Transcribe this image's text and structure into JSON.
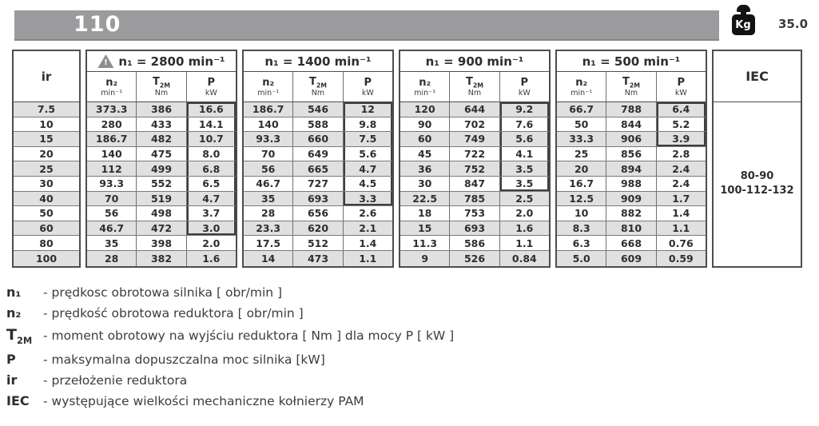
{
  "header": {
    "model": "110",
    "kg_label": "Kg",
    "weight": "35.0"
  },
  "table": {
    "ir_label": "ir",
    "iec_label": "IEC",
    "iec_values": [
      "80-90",
      "100-112-132"
    ],
    "warning_icon_char": "!",
    "sub_headers": {
      "n2_sym": "n₂",
      "n2_unit": "min⁻¹",
      "t2m_main": "T",
      "t2m_sub": "2M",
      "t2m_unit": "Nm",
      "p_sym": "P",
      "p_unit": "kW"
    },
    "ir_values": [
      "7.5",
      "10",
      "15",
      "20",
      "25",
      "30",
      "40",
      "50",
      "60",
      "80",
      "100"
    ],
    "groups": [
      {
        "title": "n₁ = 2800 min⁻¹",
        "warning": true,
        "p_box_rows": 9,
        "n2": [
          "373.3",
          "280",
          "186.7",
          "140",
          "112",
          "93.3",
          "70",
          "56",
          "46.7",
          "35",
          "28"
        ],
        "t2m": [
          "386",
          "433",
          "482",
          "475",
          "499",
          "552",
          "519",
          "498",
          "472",
          "398",
          "382"
        ],
        "p": [
          "16.6",
          "14.1",
          "10.7",
          "8.0",
          "6.8",
          "6.5",
          "4.7",
          "3.7",
          "3.0",
          "2.0",
          "1.6"
        ]
      },
      {
        "title": "n₁ = 1400 min⁻¹",
        "warning": false,
        "p_box_rows": 7,
        "n2": [
          "186.7",
          "140",
          "93.3",
          "70",
          "56",
          "46.7",
          "35",
          "28",
          "23.3",
          "17.5",
          "14"
        ],
        "t2m": [
          "546",
          "588",
          "660",
          "649",
          "665",
          "727",
          "693",
          "656",
          "620",
          "512",
          "473"
        ],
        "p": [
          "12",
          "9.8",
          "7.5",
          "5.6",
          "4.7",
          "4.5",
          "3.3",
          "2.6",
          "2.1",
          "1.4",
          "1.1"
        ]
      },
      {
        "title": "n₁ = 900 min⁻¹",
        "warning": false,
        "p_box_rows": 6,
        "n2": [
          "120",
          "90",
          "60",
          "45",
          "36",
          "30",
          "22.5",
          "18",
          "15",
          "11.3",
          "9"
        ],
        "t2m": [
          "644",
          "702",
          "749",
          "722",
          "752",
          "847",
          "785",
          "753",
          "693",
          "586",
          "526"
        ],
        "p": [
          "9.2",
          "7.6",
          "5.6",
          "4.1",
          "3.5",
          "3.5",
          "2.5",
          "2.0",
          "1.6",
          "1.1",
          "0.84"
        ]
      },
      {
        "title": "n₁ = 500 min⁻¹",
        "warning": false,
        "p_box_rows": 3,
        "n2": [
          "66.7",
          "50",
          "33.3",
          "25",
          "20",
          "16.7",
          "12.5",
          "10",
          "8.3",
          "6.3",
          "5.0"
        ],
        "t2m": [
          "788",
          "844",
          "906",
          "856",
          "894",
          "988",
          "909",
          "882",
          "810",
          "668",
          "609"
        ],
        "p": [
          "6.4",
          "5.2",
          "3.9",
          "2.8",
          "2.4",
          "2.4",
          "1.7",
          "1.4",
          "1.1",
          "0.76",
          "0.59"
        ]
      }
    ]
  },
  "legend": [
    {
      "id": "n1",
      "sym": "n₁",
      "sub": "",
      "text": "- prędkosc obrotowa silnika [ obr/min ]"
    },
    {
      "id": "n2",
      "sym": "n₂",
      "sub": "",
      "text": "- prędkość obrotowa reduktora [ obr/min ]"
    },
    {
      "id": "t2m",
      "sym": "T",
      "sub": "2M",
      "text": "- moment obrotowy na wyjściu reduktora [ Nm ] dla mocy P  [ kW ]"
    },
    {
      "id": "p",
      "sym": "P",
      "sub": "",
      "text": "- maksymalna dopuszczalna moc silnika [kW]"
    },
    {
      "id": "ir",
      "sym": "ir",
      "sub": "",
      "text": "-  przełożenie reduktora"
    },
    {
      "id": "iec",
      "sym": "IEC",
      "sub": "",
      "text": "-  występujące wielkości mechaniczne kołnierzy PAM"
    }
  ],
  "colors": {
    "bar_gray": "#9b9b9e",
    "row_shade": "#e0e0e0",
    "border_dark": "#4d4d4d",
    "text_dark": "#2e2e2e",
    "icon_black": "#131313"
  }
}
